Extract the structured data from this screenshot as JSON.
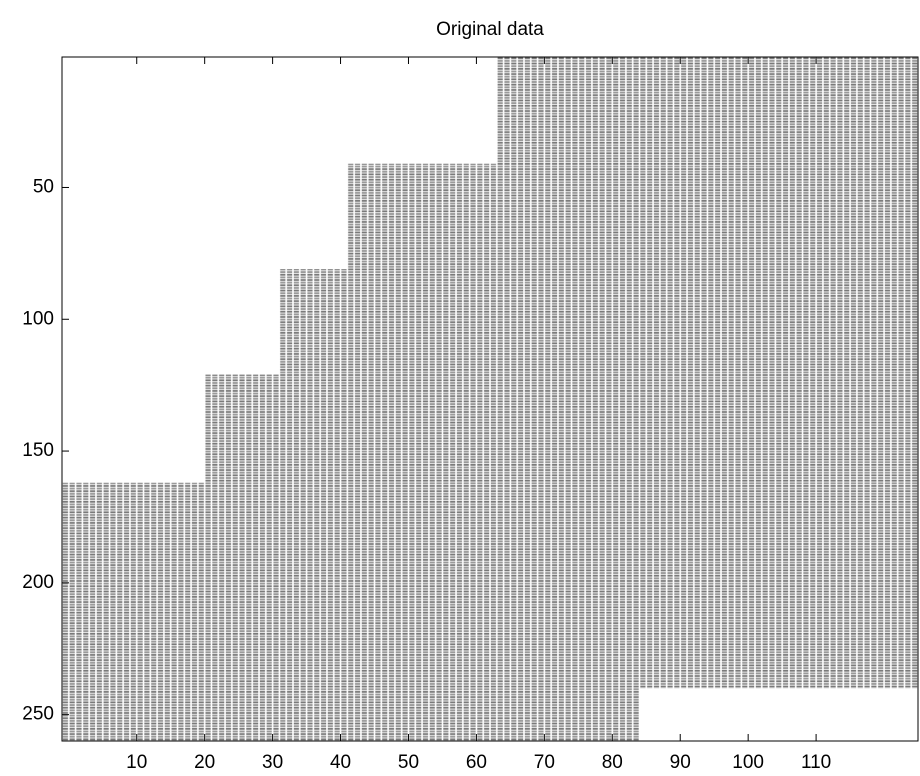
{
  "chart_data": {
    "type": "heatmap",
    "title": "Original data",
    "xlim": [
      -1,
      125
    ],
    "ylim": [
      0.5,
      260
    ],
    "y_reversed": true,
    "xticks": [
      10,
      20,
      30,
      40,
      50,
      60,
      70,
      80,
      90,
      100,
      110
    ],
    "yticks": [
      50,
      100,
      150,
      200,
      250
    ],
    "blocks": [
      {
        "x": [
          -1,
          20
        ],
        "y": [
          162,
          260
        ]
      },
      {
        "x": [
          20,
          31
        ],
        "y": [
          121,
          260
        ]
      },
      {
        "x": [
          31,
          41
        ],
        "y": [
          81,
          260
        ]
      },
      {
        "x": [
          41,
          63
        ],
        "y": [
          41,
          260
        ]
      },
      {
        "x": [
          63,
          84
        ],
        "y": [
          0.5,
          260
        ]
      },
      {
        "x": [
          84,
          125
        ],
        "y": [
          0.5,
          240
        ]
      }
    ]
  }
}
